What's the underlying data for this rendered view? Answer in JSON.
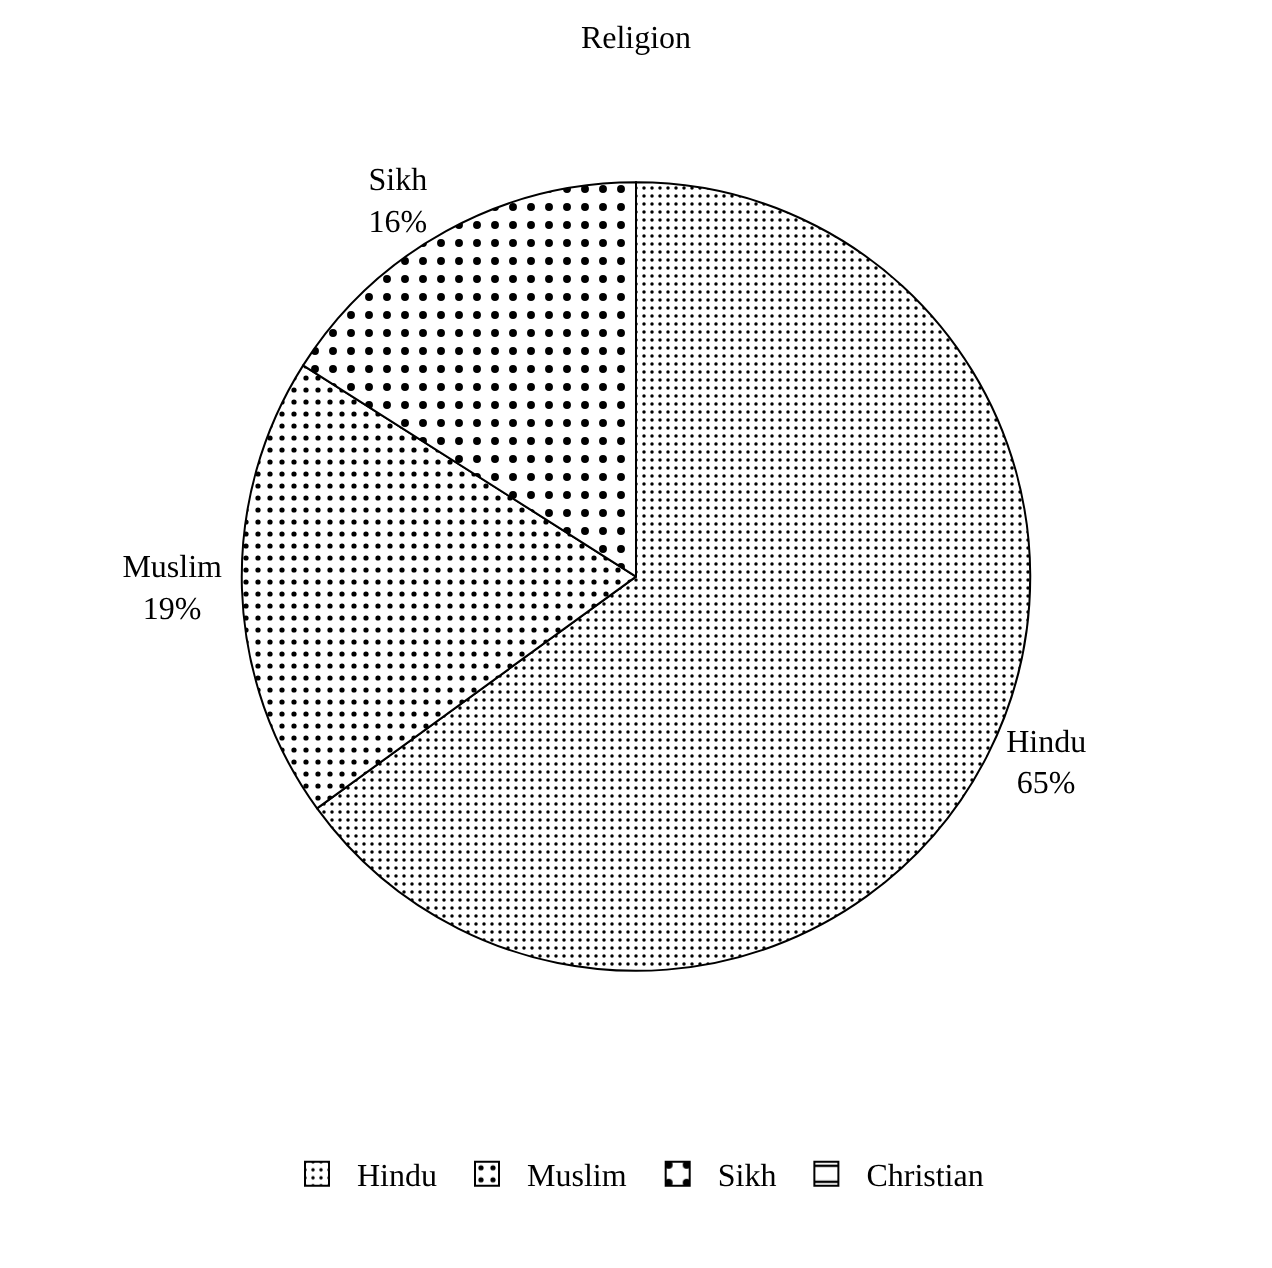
{
  "chart_data": {
    "type": "pie",
    "title": "Religion",
    "categories": [
      "Hindu",
      "Muslim",
      "Sikh",
      "Christian"
    ],
    "values": [
      65,
      19,
      16,
      0
    ],
    "colors": [
      "#000000",
      "#000000",
      "#000000",
      "#000000"
    ],
    "value_labels": [
      "65%",
      "19%",
      "16%",
      null
    ],
    "legend": "bottom"
  }
}
